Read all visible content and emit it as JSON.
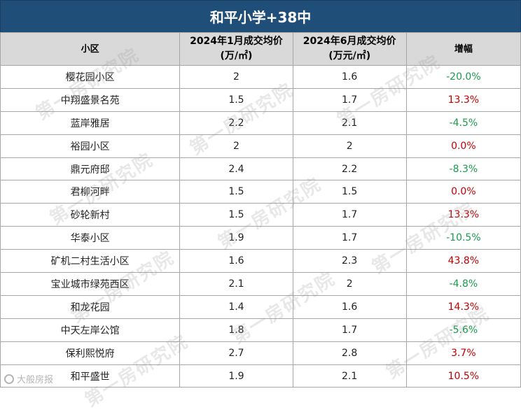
{
  "title": "和平小学+38中",
  "headers": {
    "community": "小区",
    "jan_price_line1": "2024年1月成交均价",
    "jan_price_line2": "(万/㎡)",
    "jun_price_line1": "2024年6月成交均价",
    "jun_price_line2": "(万元/㎡)",
    "change": "增幅"
  },
  "rows": [
    {
      "name": "樱花园小区",
      "jan": "2",
      "jun": "1.6",
      "change": "-20.0%",
      "dir": "down"
    },
    {
      "name": "中翔盛景名苑",
      "jan": "1.5",
      "jun": "1.7",
      "change": "13.3%",
      "dir": "up"
    },
    {
      "name": "蓝岸雅居",
      "jan": "2.2",
      "jun": "2.1",
      "change": "-4.5%",
      "dir": "down"
    },
    {
      "name": "裕园小区",
      "jan": "2",
      "jun": "2",
      "change": "0.0%",
      "dir": "up"
    },
    {
      "name": "鼎元府邸",
      "jan": "2.4",
      "jun": "2.2",
      "change": "-8.3%",
      "dir": "down"
    },
    {
      "name": "君柳河畔",
      "jan": "1.5",
      "jun": "1.5",
      "change": "0.0%",
      "dir": "up"
    },
    {
      "name": "砂轮新村",
      "jan": "1.5",
      "jun": "1.7",
      "change": "13.3%",
      "dir": "up"
    },
    {
      "name": "华泰小区",
      "jan": "1.9",
      "jun": "1.7",
      "change": "-10.5%",
      "dir": "down"
    },
    {
      "name": "矿机二村生活小区",
      "jan": "1.6",
      "jun": "2.3",
      "change": "43.8%",
      "dir": "up"
    },
    {
      "name": "宝业城市绿苑西区",
      "jan": "2.1",
      "jun": "2",
      "change": "-4.8%",
      "dir": "down"
    },
    {
      "name": "和龙花园",
      "jan": "1.4",
      "jun": "1.6",
      "change": "14.3%",
      "dir": "up"
    },
    {
      "name": "中天左岸公馆",
      "jan": "1.8",
      "jun": "1.7",
      "change": "-5.6%",
      "dir": "down"
    },
    {
      "name": "保利熙悦府",
      "jan": "2.7",
      "jun": "2.8",
      "change": "3.7%",
      "dir": "up"
    },
    {
      "name": "和平盛世",
      "jan": "1.9",
      "jun": "2.1",
      "change": "10.5%",
      "dir": "up"
    }
  ],
  "colors": {
    "header_bg": "#1f4e79",
    "up": "#c00000",
    "down": "#1a9a4b",
    "col_header_bg": "#d9d9d9"
  },
  "watermark": "第一房研究院",
  "logo_text": "大般房报"
}
